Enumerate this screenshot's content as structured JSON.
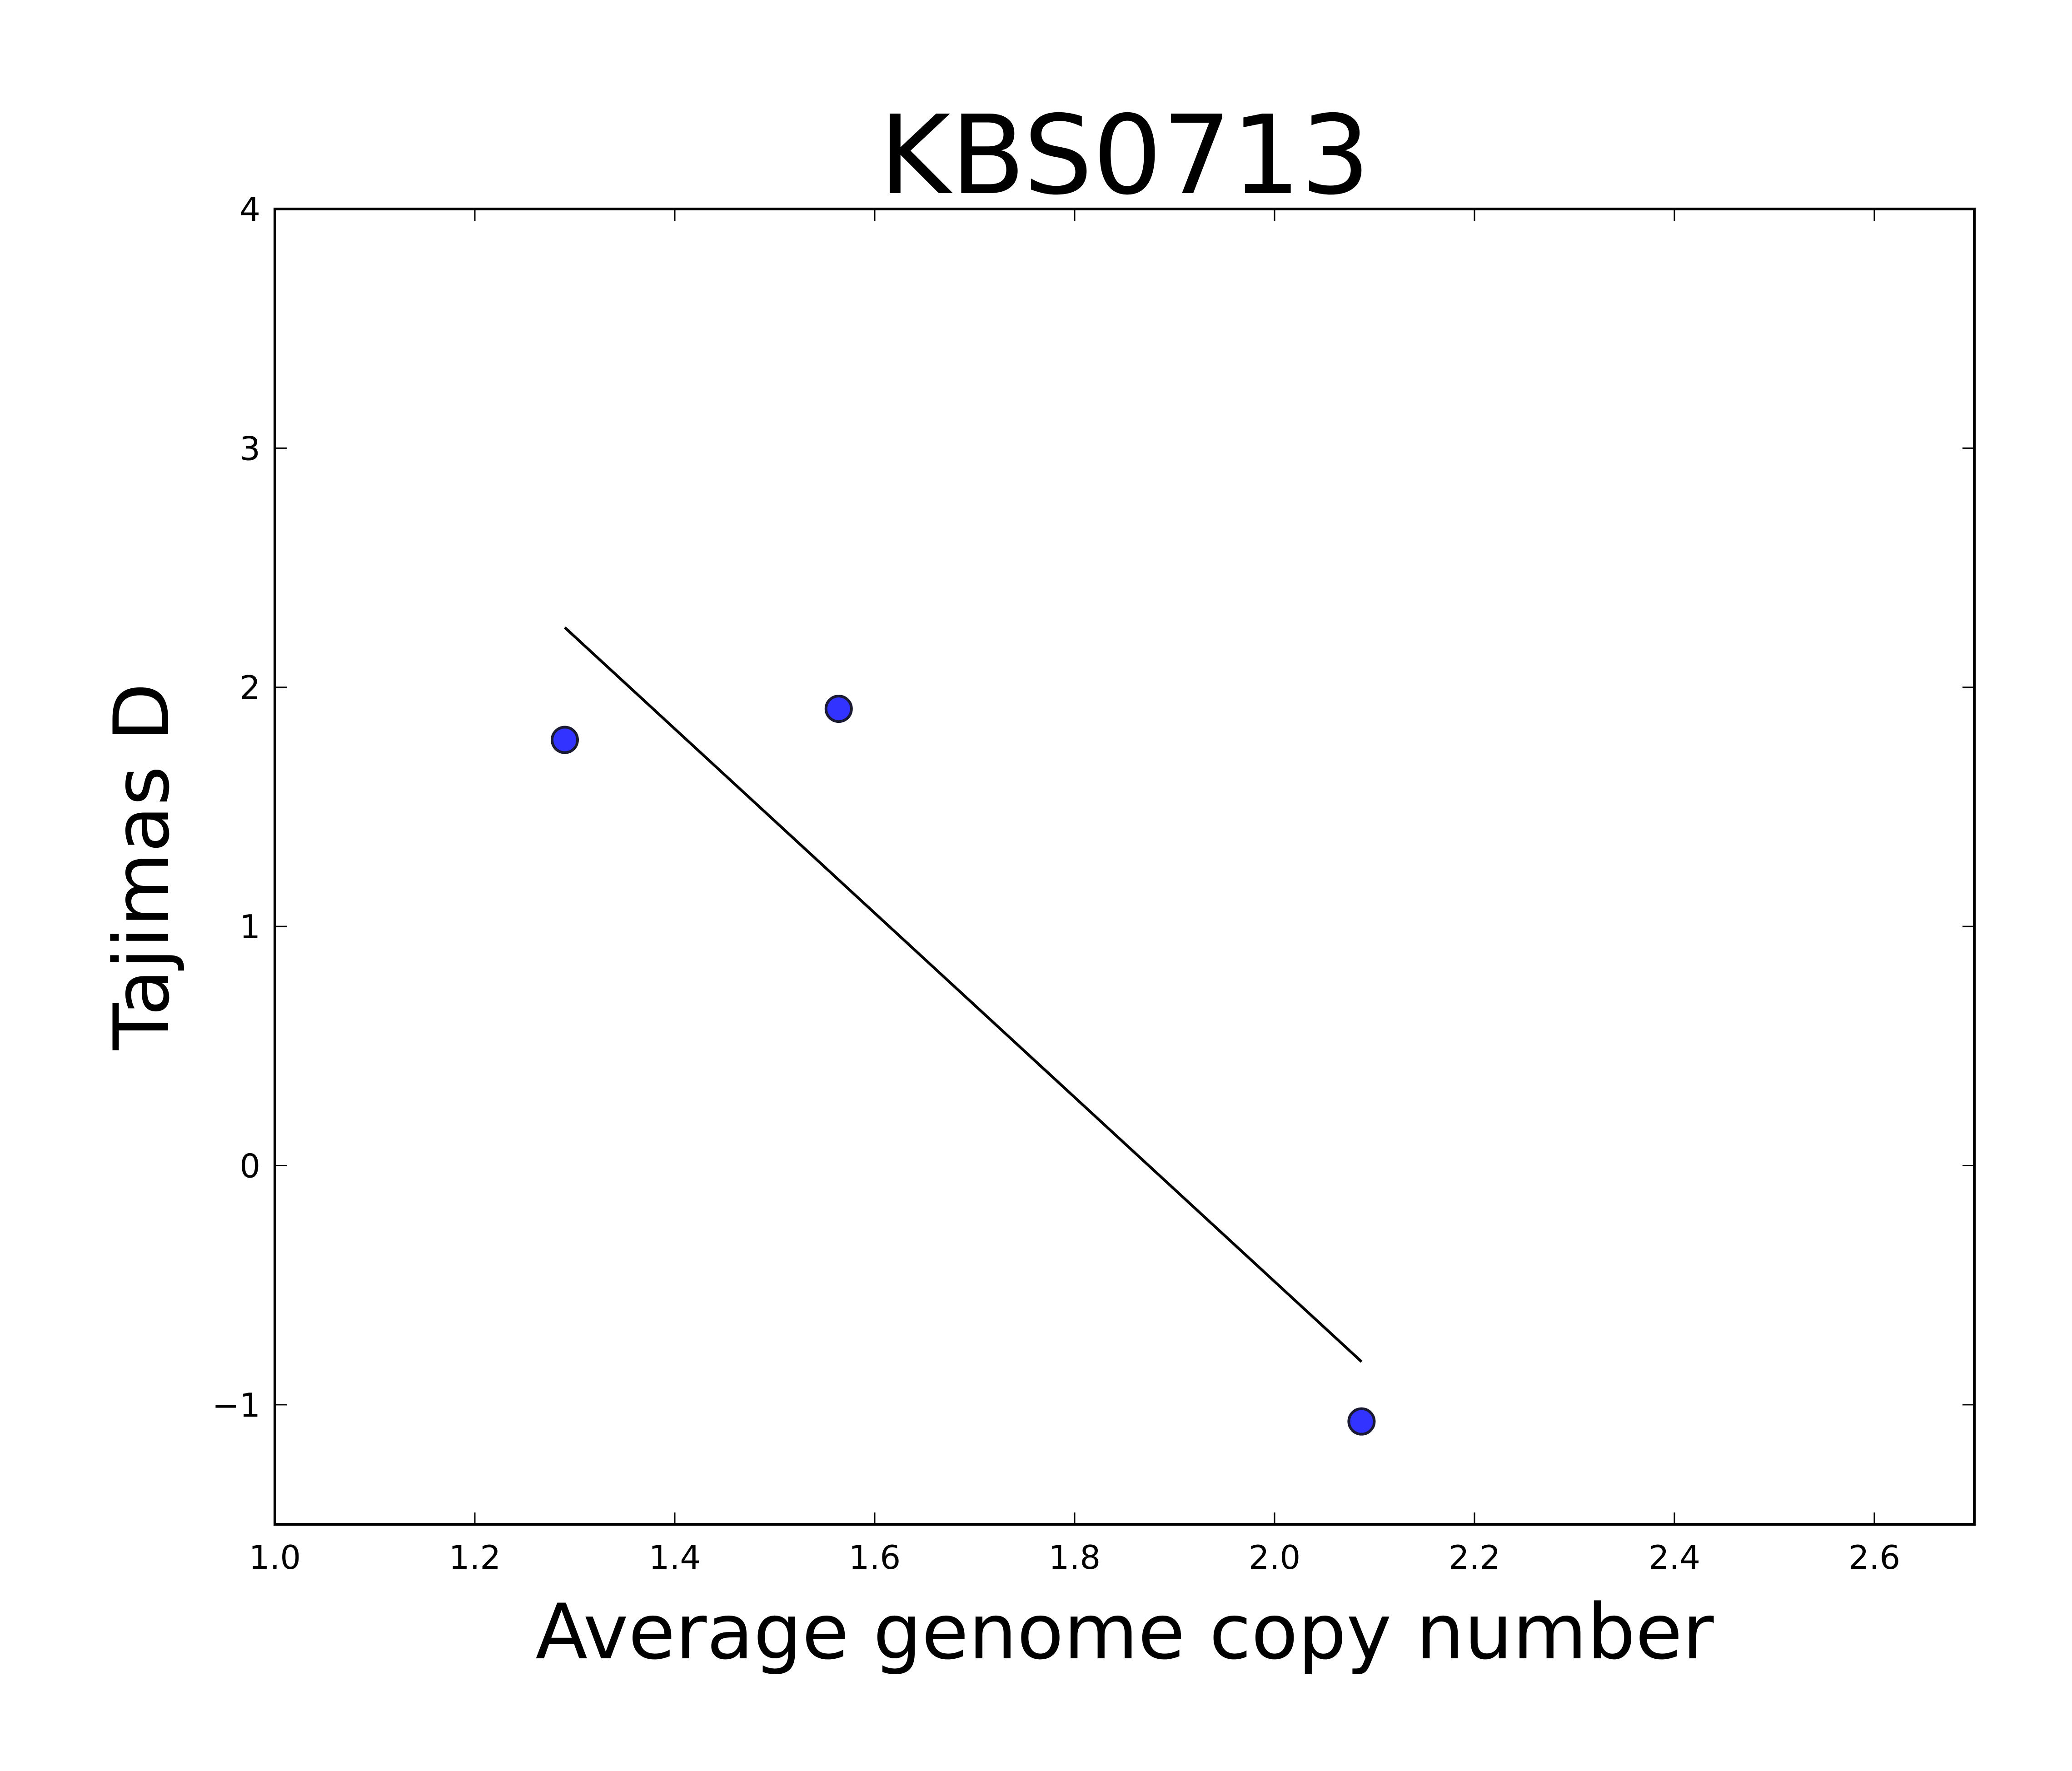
{
  "chart_data": {
    "type": "scatter",
    "title": "KBS0713",
    "xlabel": "Average genome copy number",
    "ylabel": "Tajimas D",
    "xlim": [
      1.0,
      2.7
    ],
    "ylim": [
      -1.5,
      4.0
    ],
    "xticks": [
      1.0,
      1.2,
      1.4,
      1.6,
      1.8,
      2.0,
      2.2,
      2.4,
      2.6
    ],
    "xtick_labels": [
      "1.0",
      "1.2",
      "1.4",
      "1.6",
      "1.8",
      "2.0",
      "2.2",
      "2.4",
      "2.6"
    ],
    "yticks": [
      -1,
      0,
      1,
      2,
      3,
      4
    ],
    "ytick_labels": [
      "−1",
      "0",
      "1",
      "2",
      "3",
      "4"
    ],
    "grid": false,
    "series": [
      {
        "type": "scatter",
        "color": "#3333ff",
        "edge_color": "#1a1a33",
        "points": [
          {
            "x": 1.29,
            "y": 1.78
          },
          {
            "x": 1.564,
            "y": 1.91
          },
          {
            "x": 2.087,
            "y": -1.07
          }
        ]
      },
      {
        "type": "line",
        "color": "#000000",
        "points": [
          {
            "x": 1.29,
            "y": 2.25
          },
          {
            "x": 2.087,
            "y": -0.82
          }
        ]
      }
    ]
  }
}
